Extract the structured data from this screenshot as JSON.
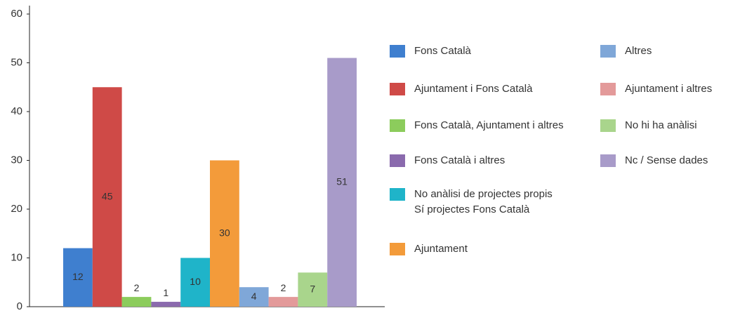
{
  "chart_data": {
    "type": "bar",
    "categories": [
      "Fons Català",
      "Ajuntament i Fons Català",
      "Fons Català, Ajuntament  i altres",
      "Fons Català i altres",
      "No anàlisi de projectes propis\nSí projectes Fons Català",
      "Ajuntament",
      "Altres",
      "Ajuntament i altres",
      "No hi ha anàlisi",
      "Nc / Sense dades"
    ],
    "values": [
      12,
      45,
      2,
      1,
      10,
      30,
      4,
      2,
      7,
      51
    ],
    "colors": [
      "#3f7fcf",
      "#cf4a47",
      "#8ccc5c",
      "#8a6aad",
      "#1fb4c9",
      "#f39b3a",
      "#7fa7d8",
      "#e39a9a",
      "#a9d58c",
      "#a89bc9"
    ],
    "ylim": [
      0,
      60
    ],
    "yticks": [
      0,
      10,
      20,
      30,
      40,
      50,
      60
    ],
    "grid": false
  }
}
